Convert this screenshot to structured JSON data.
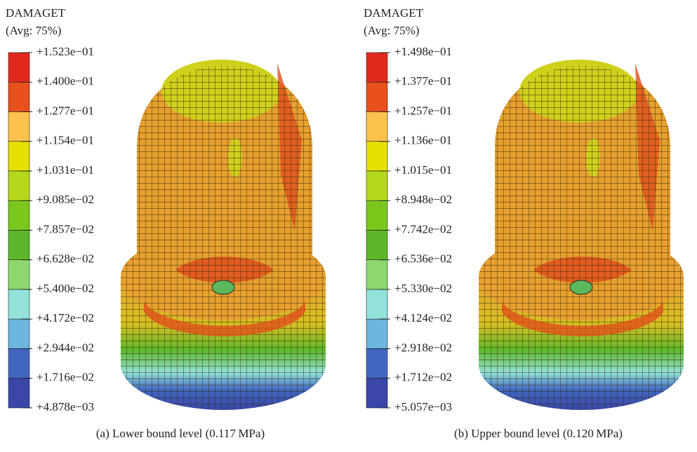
{
  "panels": [
    {
      "title": "DAMAGET",
      "subtitle": "(Avg: 75%)",
      "levels": [
        "+1.523e−01",
        "+1.400e−01",
        "+1.277e−01",
        "+1.154e−01",
        "+1.031e−01",
        "+9.085e−02",
        "+7.857e−02",
        "+6.628e−02",
        "+5.400e−02",
        "+4.172e−02",
        "+2.944e−02",
        "+1.716e−02",
        "+4.878e−03"
      ],
      "caption": "(a) Lower bound level (0.117 MPa)"
    },
    {
      "title": "DAMAGET",
      "subtitle": "(Avg: 75%)",
      "levels": [
        "+1.498e−01",
        "+1.377e−01",
        "+1.257e−01",
        "+1.136e−01",
        "+1.015e−01",
        "+8.948e−02",
        "+7.742e−02",
        "+6.536e−02",
        "+5.330e−02",
        "+4.124e−02",
        "+2.918e−02",
        "+1.712e−02",
        "+5.057e−03"
      ],
      "caption": "(b) Upper bound level (0.120 MPa)"
    }
  ],
  "band_colors": [
    "#e0291c",
    "#e8501c",
    "#fcc24c",
    "#e6e000",
    "#b6d81c",
    "#7cc71c",
    "#5cb82a",
    "#8cd86e",
    "#92e2da",
    "#6cb6e0",
    "#4066c0",
    "#3a46a8"
  ]
}
